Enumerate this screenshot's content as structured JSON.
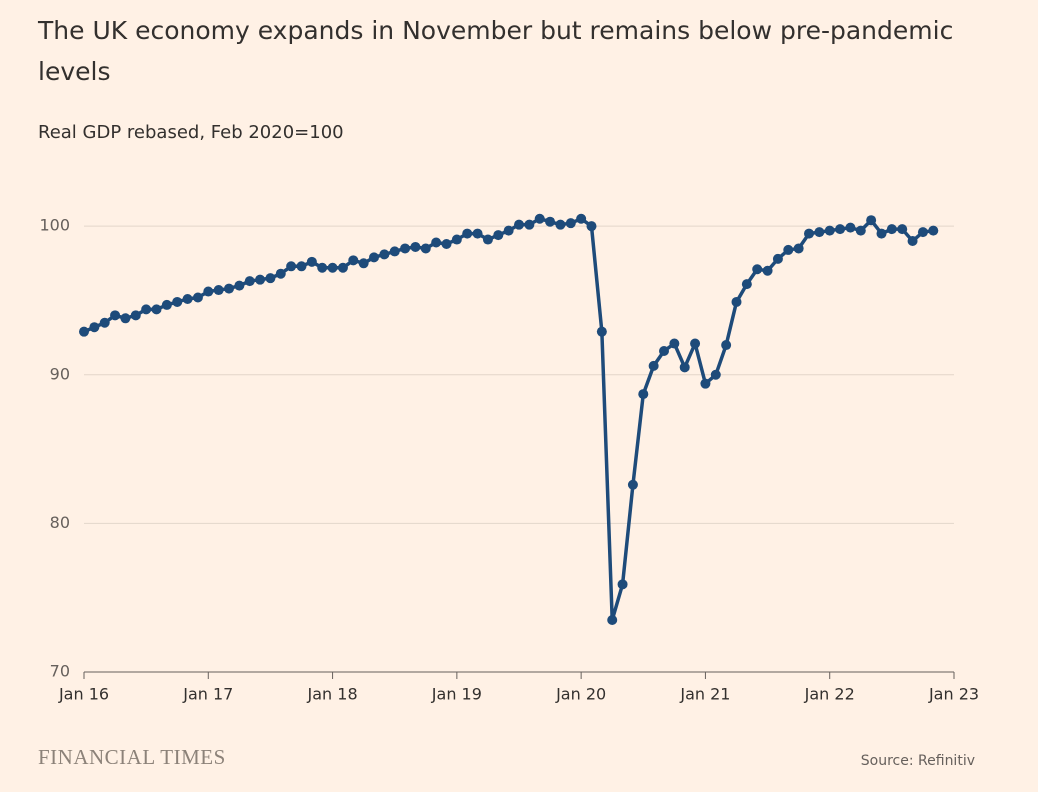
{
  "chart_data": {
    "type": "line",
    "title": "The UK economy expands in November but remains below pre-pandemic levels",
    "subtitle": "Real GDP rebased, Feb 2020=100",
    "source": "Source: Refinitiv",
    "brand": "FINANCIAL TIMES",
    "color": "#1e4b7a",
    "grid": true,
    "x": [
      "2016-01",
      "2016-02",
      "2016-03",
      "2016-04",
      "2016-05",
      "2016-06",
      "2016-07",
      "2016-08",
      "2016-09",
      "2016-10",
      "2016-11",
      "2016-12",
      "2017-01",
      "2017-02",
      "2017-03",
      "2017-04",
      "2017-05",
      "2017-06",
      "2017-07",
      "2017-08",
      "2017-09",
      "2017-10",
      "2017-11",
      "2017-12",
      "2018-01",
      "2018-02",
      "2018-03",
      "2018-04",
      "2018-05",
      "2018-06",
      "2018-07",
      "2018-08",
      "2018-09",
      "2018-10",
      "2018-11",
      "2018-12",
      "2019-01",
      "2019-02",
      "2019-03",
      "2019-04",
      "2019-05",
      "2019-06",
      "2019-07",
      "2019-08",
      "2019-09",
      "2019-10",
      "2019-11",
      "2019-12",
      "2020-01",
      "2020-02",
      "2020-03",
      "2020-04",
      "2020-05",
      "2020-06",
      "2020-07",
      "2020-08",
      "2020-09",
      "2020-10",
      "2020-11",
      "2020-12",
      "2021-01",
      "2021-02",
      "2021-03",
      "2021-04",
      "2021-05",
      "2021-06",
      "2021-07",
      "2021-08",
      "2021-09",
      "2021-10",
      "2021-11",
      "2021-12",
      "2022-01",
      "2022-02",
      "2022-03",
      "2022-04",
      "2022-05",
      "2022-06",
      "2022-07",
      "2022-08",
      "2022-09",
      "2022-10",
      "2022-11"
    ],
    "values": [
      92.9,
      93.2,
      93.5,
      94.0,
      93.8,
      94.0,
      94.4,
      94.4,
      94.7,
      94.9,
      95.1,
      95.2,
      95.6,
      95.7,
      95.8,
      96.0,
      96.3,
      96.4,
      96.5,
      96.8,
      97.3,
      97.3,
      97.6,
      97.2,
      97.2,
      97.2,
      97.7,
      97.5,
      97.9,
      98.1,
      98.3,
      98.5,
      98.6,
      98.5,
      98.9,
      98.8,
      99.1,
      99.5,
      99.5,
      99.1,
      99.4,
      99.7,
      100.1,
      100.1,
      100.5,
      100.3,
      100.1,
      100.2,
      100.5,
      100.0,
      92.9,
      73.5,
      75.9,
      82.6,
      88.7,
      90.6,
      91.6,
      92.1,
      90.5,
      92.1,
      89.4,
      90.0,
      92.0,
      94.9,
      96.1,
      97.1,
      97.0,
      97.8,
      98.4,
      98.5,
      99.5,
      99.6,
      99.7,
      99.8,
      99.9,
      99.7,
      100.4,
      99.5,
      99.8,
      99.8,
      99.0,
      99.6,
      99.7
    ],
    "xlim": [
      "2016-01",
      "2023-01"
    ],
    "xticks": [
      {
        "value": "2016-01",
        "label": "Jan 16"
      },
      {
        "value": "2017-01",
        "label": "Jan 17"
      },
      {
        "value": "2018-01",
        "label": "Jan 18"
      },
      {
        "value": "2019-01",
        "label": "Jan 19"
      },
      {
        "value": "2020-01",
        "label": "Jan 20"
      },
      {
        "value": "2021-01",
        "label": "Jan 21"
      },
      {
        "value": "2022-01",
        "label": "Jan 22"
      },
      {
        "value": "2023-01",
        "label": "Jan 23"
      }
    ],
    "ylim": [
      70,
      102.5
    ],
    "yticks": [
      70,
      80,
      90,
      100
    ]
  }
}
